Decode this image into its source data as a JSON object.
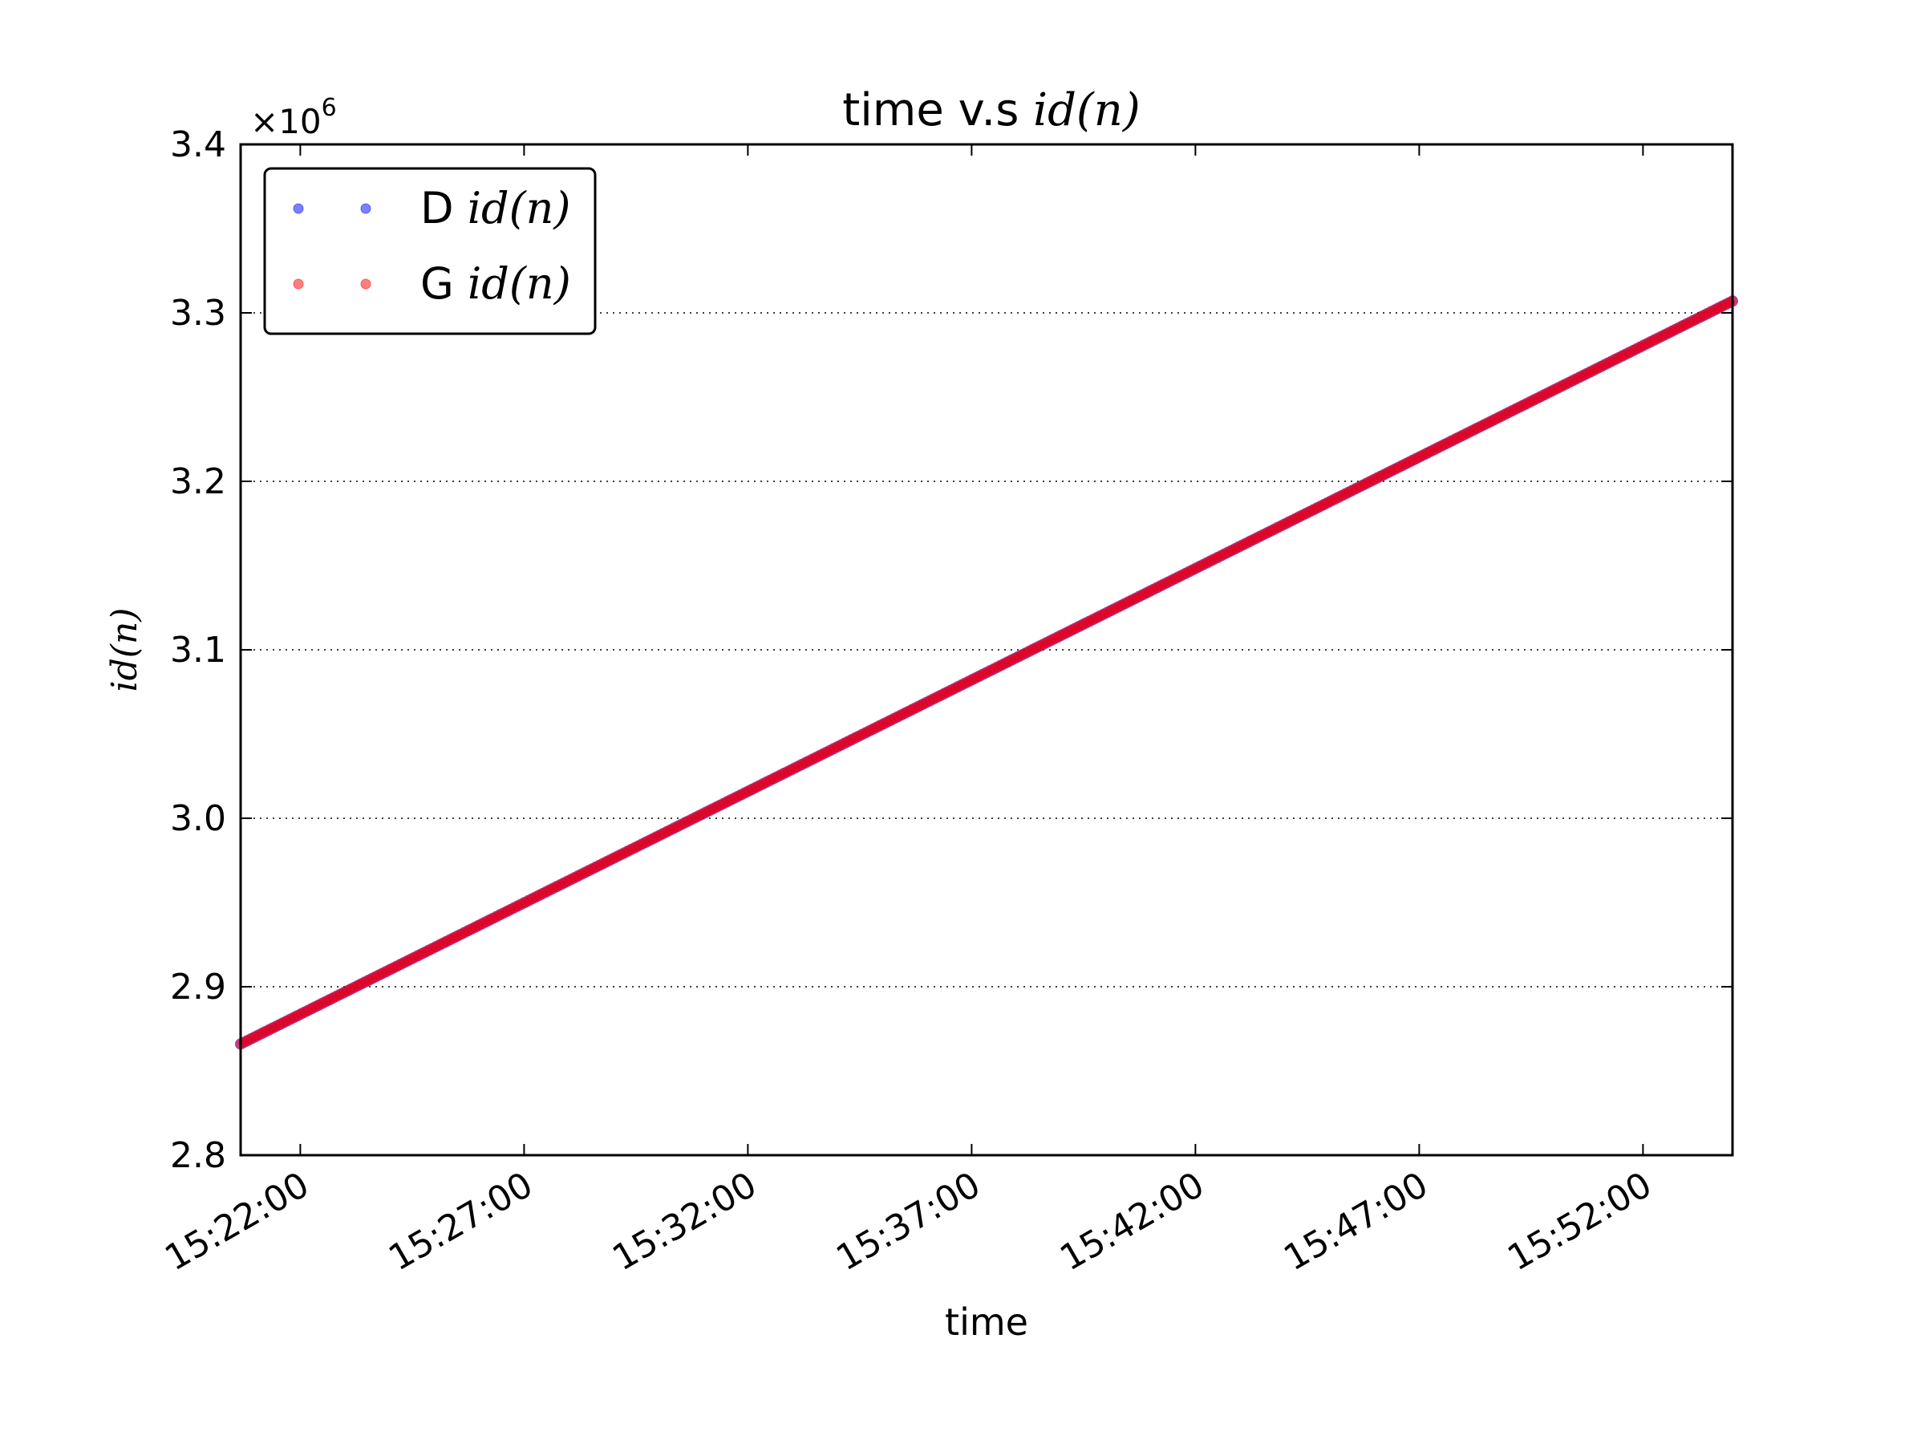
{
  "chart_data": {
    "type": "scatter",
    "title_prefix": "time v.s ",
    "title_math": "id(n)",
    "xlabel": "time",
    "ylabel_math": "id(n)",
    "y_offset_base": "×10",
    "y_offset_exponent": "6",
    "y_multiplier": 1000000,
    "x_tick_labels": [
      "15:22:00",
      "15:27:00",
      "15:32:00",
      "15:37:00",
      "15:42:00",
      "15:47:00",
      "15:52:00"
    ],
    "y_tick_labels": [
      "2.8",
      "2.9",
      "3.0",
      "3.1",
      "3.2",
      "3.3",
      "3.4"
    ],
    "xlim": [
      "15:20:40",
      "15:54:00"
    ],
    "ylim": [
      2.8,
      3.4
    ],
    "grid": "horizontal dotted",
    "legend_placement": "top-left",
    "series": [
      {
        "name_prefix": "D ",
        "name_math": "id(n)",
        "color": "#0000ff",
        "x": [
          "15:20:40",
          "15:54:00"
        ],
        "y": [
          2.866,
          3.307
        ]
      },
      {
        "name_prefix": "G ",
        "name_math": "id(n)",
        "color": "#ff0000",
        "x": [
          "15:20:40",
          "15:54:00"
        ],
        "y": [
          2.866,
          3.307
        ]
      }
    ]
  }
}
